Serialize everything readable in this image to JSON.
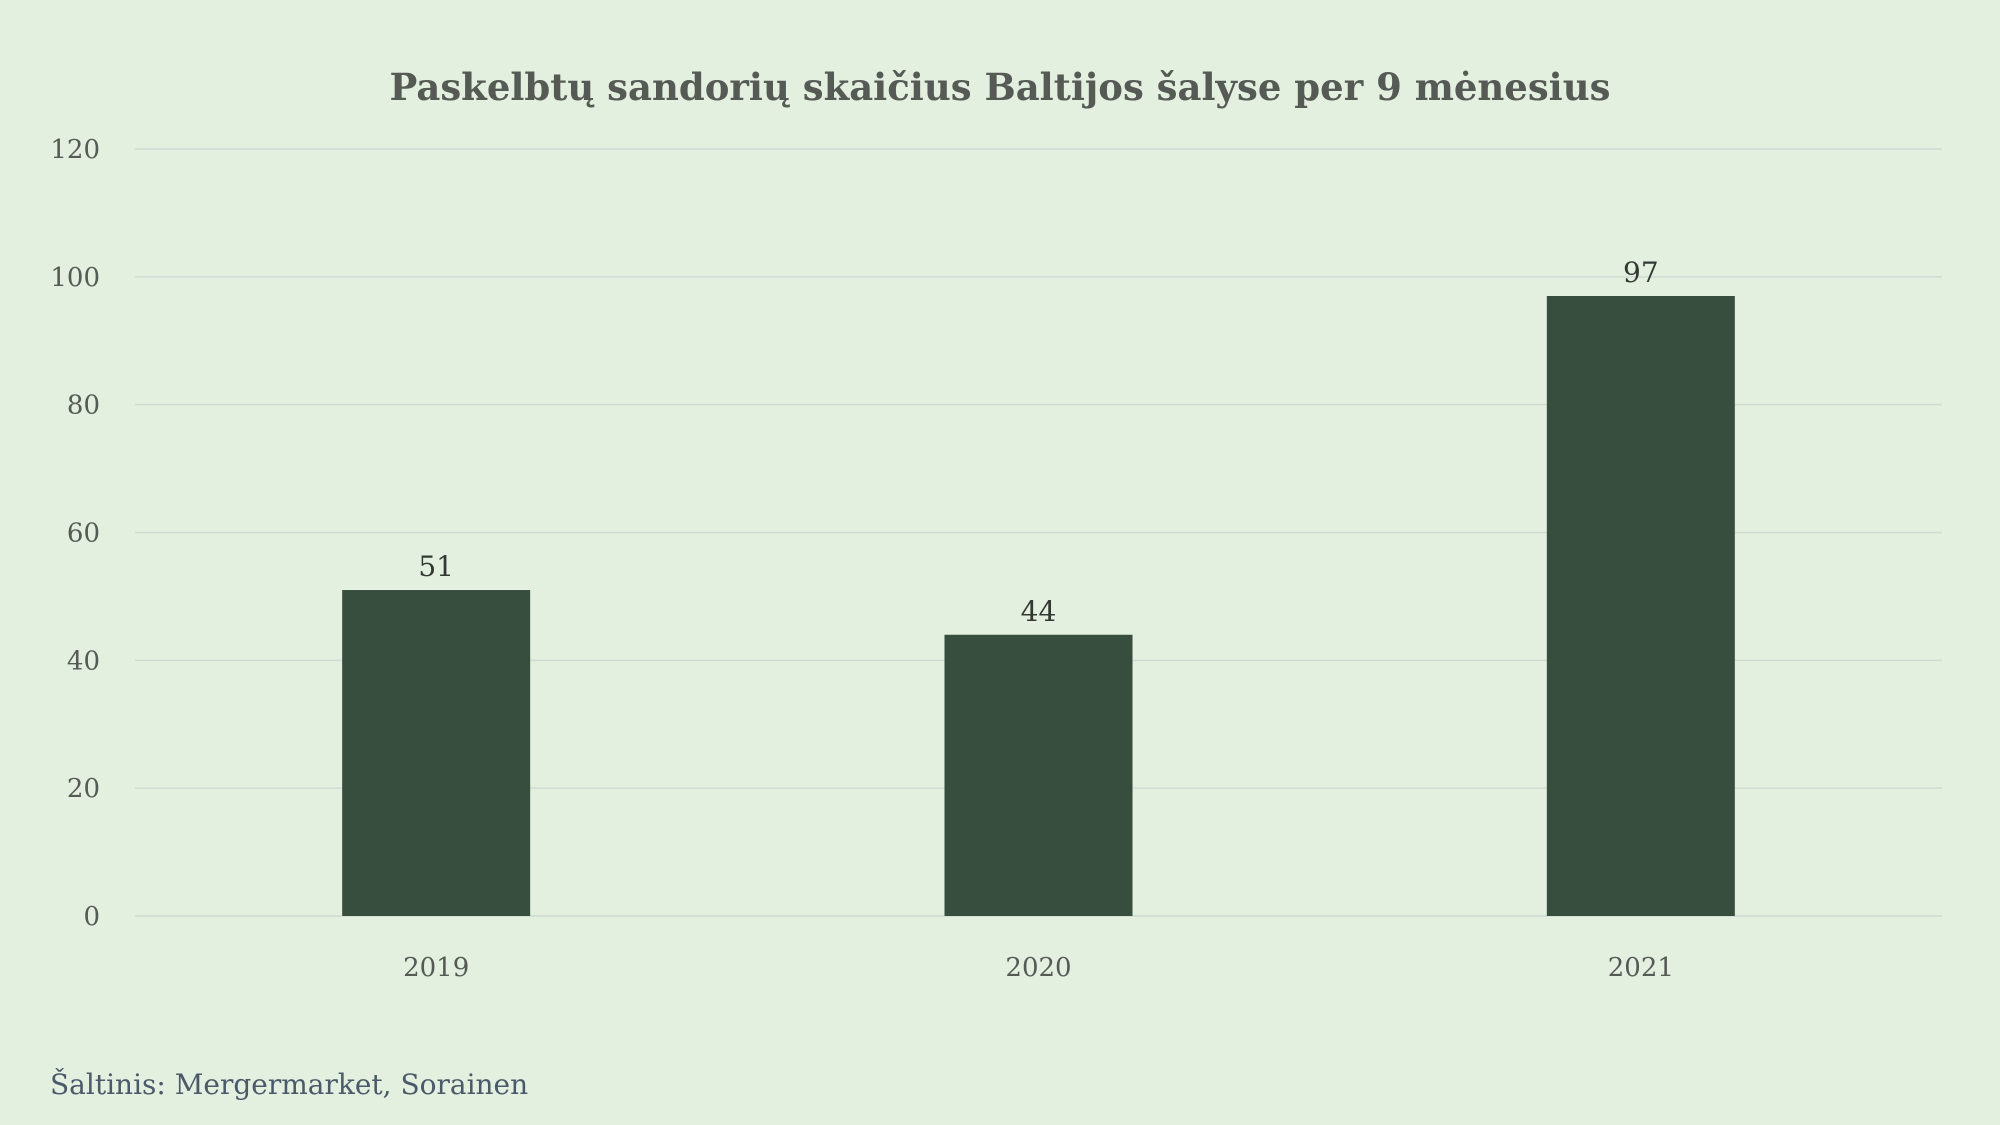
{
  "chart_data": {
    "type": "bar",
    "title": "Paskelbtų sandorių skaičius Baltijos šalyse per 9 mėnesius",
    "categories": [
      "2019",
      "2020",
      "2021"
    ],
    "values": [
      51,
      44,
      97
    ],
    "data_labels": [
      "51",
      "44",
      "97"
    ],
    "xlabel": "",
    "ylabel": "",
    "ylim": [
      0,
      120
    ],
    "yticks": [
      0,
      20,
      40,
      60,
      80,
      100,
      120
    ],
    "ytick_labels": [
      "0",
      "20",
      "40",
      "60",
      "80",
      "100",
      "120"
    ],
    "grid": true,
    "legend": "none",
    "colors": {
      "bar": "#374d3e",
      "background": "#e3efdf",
      "grid": "#cfdcd4"
    }
  },
  "source_note": "Šaltinis: Mergermarket, Sorainen"
}
